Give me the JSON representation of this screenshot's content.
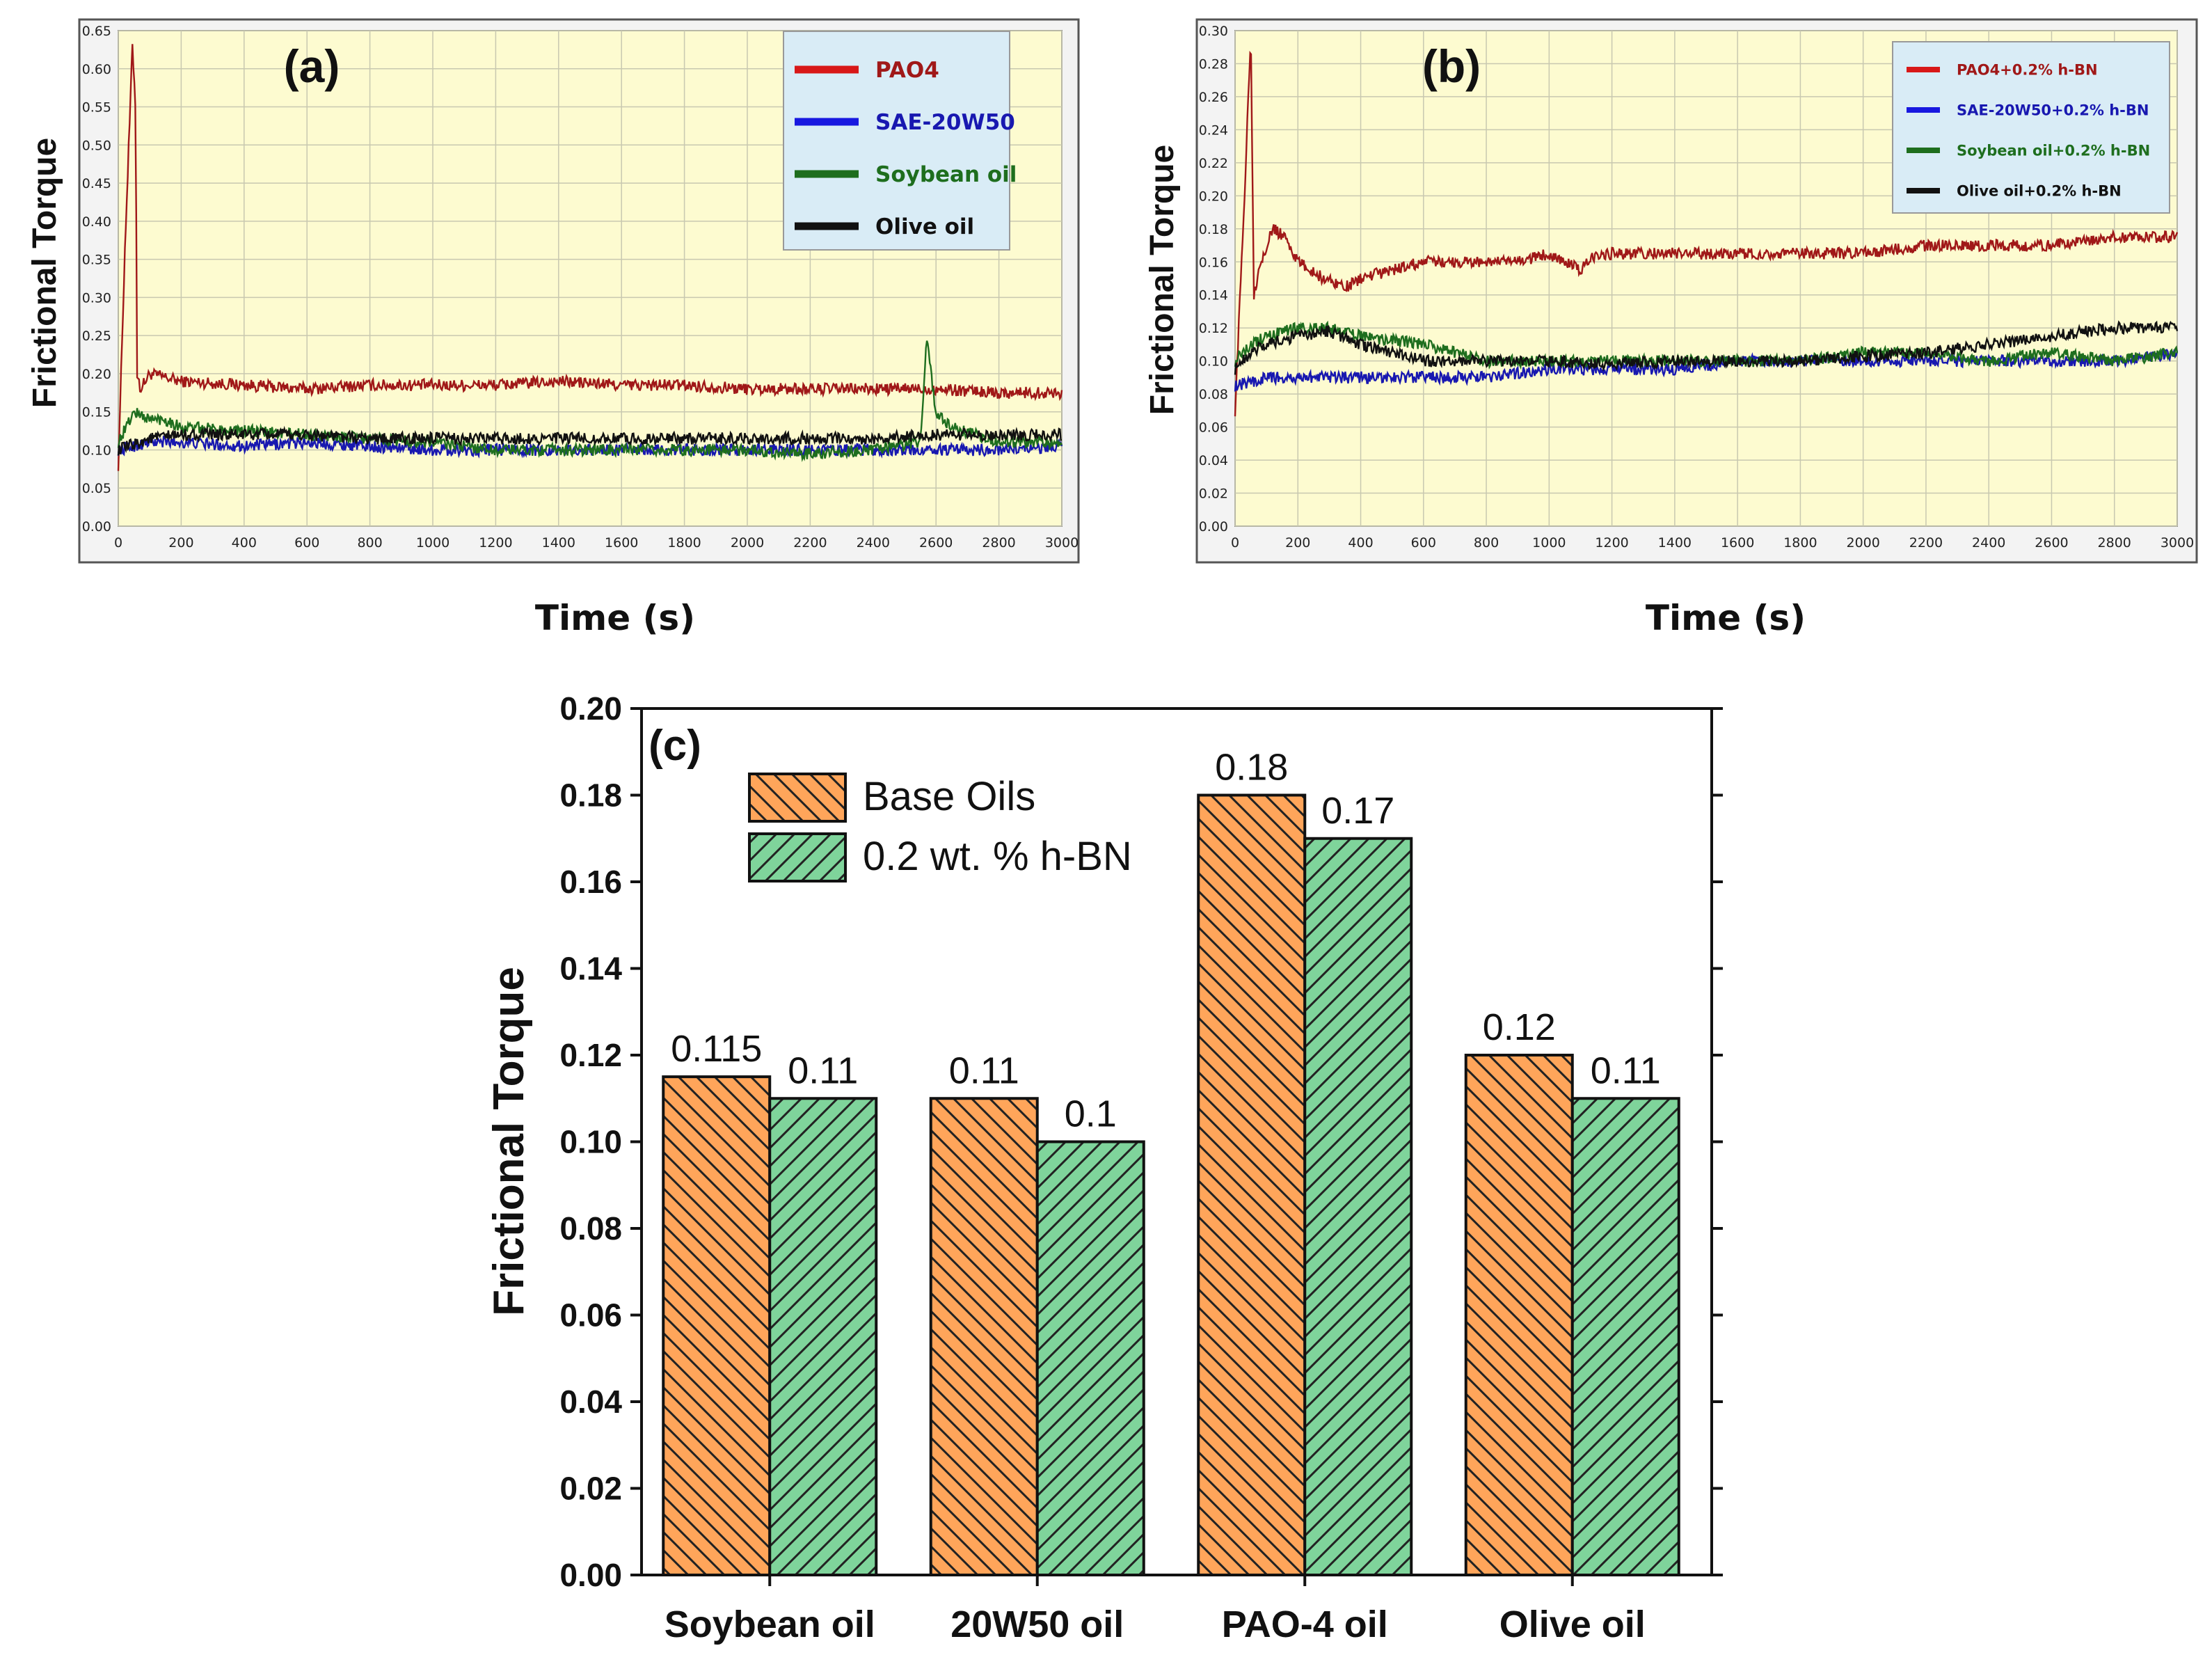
{
  "colors": {
    "plot_bg": "#fdfbd0",
    "legend_bg": "#d9ecf6",
    "grid": "#c8c8b0",
    "red": "#a01818",
    "blue": "#1818b0",
    "green": "#1e6e1e",
    "black": "#111111",
    "orange": "#ffa55a",
    "greenbar": "#7fd49b"
  },
  "chart_data": [
    {
      "panel": "(a)",
      "type": "line",
      "xlabel": "Time (s)",
      "ylabel": "Frictional Torque",
      "xlim": [
        0,
        3000
      ],
      "ylim": [
        0,
        0.65
      ],
      "xticks": [
        "0",
        "200",
        "400",
        "600",
        "800",
        "1000",
        "1200",
        "1400",
        "1600",
        "1800",
        "2000",
        "2200",
        "2400",
        "2600",
        "2800",
        "3000"
      ],
      "yticks": [
        "0.00",
        "0.05",
        "0.10",
        "0.15",
        "0.20",
        "0.25",
        "0.30",
        "0.35",
        "0.40",
        "0.45",
        "0.50",
        "0.55",
        "0.60",
        "0.65"
      ],
      "legend_loc": "top-right",
      "series": [
        {
          "name": "PAO4",
          "color": "red",
          "x": [
            0,
            20,
            45,
            55,
            60,
            70,
            100,
            200,
            400,
            600,
            800,
            1000,
            1200,
            1400,
            1600,
            1800,
            2000,
            2200,
            2400,
            2600,
            2800,
            3000
          ],
          "y": [
            0.08,
            0.35,
            0.63,
            0.55,
            0.2,
            0.18,
            0.2,
            0.19,
            0.185,
            0.18,
            0.185,
            0.185,
            0.185,
            0.19,
            0.185,
            0.185,
            0.18,
            0.18,
            0.18,
            0.18,
            0.175,
            0.175
          ]
        },
        {
          "name": "SAE-20W50",
          "color": "blue",
          "x": [
            0,
            100,
            200,
            400,
            600,
            800,
            1000,
            1200,
            1400,
            1600,
            1800,
            2000,
            2200,
            2400,
            2600,
            2800,
            3000
          ],
          "y": [
            0.1,
            0.11,
            0.11,
            0.105,
            0.11,
            0.105,
            0.1,
            0.1,
            0.1,
            0.1,
            0.1,
            0.1,
            0.1,
            0.1,
            0.1,
            0.1,
            0.105
          ]
        },
        {
          "name": "Soybean oil",
          "color": "green",
          "x": [
            0,
            50,
            100,
            150,
            200,
            400,
            600,
            800,
            1000,
            1200,
            1400,
            1600,
            1800,
            2000,
            2200,
            2400,
            2550,
            2570,
            2600,
            2650,
            2800,
            3000
          ],
          "y": [
            0.11,
            0.15,
            0.14,
            0.14,
            0.13,
            0.125,
            0.12,
            0.115,
            0.11,
            0.1,
            0.1,
            0.1,
            0.1,
            0.1,
            0.095,
            0.1,
            0.11,
            0.245,
            0.15,
            0.13,
            0.11,
            0.11
          ]
        },
        {
          "name": "Olive oil",
          "color": "black",
          "x": [
            0,
            100,
            200,
            400,
            600,
            800,
            1000,
            1200,
            1400,
            1600,
            1800,
            2000,
            2200,
            2400,
            2600,
            2800,
            3000
          ],
          "y": [
            0.1,
            0.115,
            0.12,
            0.12,
            0.12,
            0.115,
            0.115,
            0.115,
            0.115,
            0.115,
            0.115,
            0.115,
            0.115,
            0.115,
            0.12,
            0.12,
            0.12
          ]
        }
      ]
    },
    {
      "panel": "(b)",
      "type": "line",
      "xlabel": "Time (s)",
      "ylabel": "Frictional Torque",
      "xlim": [
        0,
        3000
      ],
      "ylim": [
        0,
        0.3
      ],
      "xticks": [
        "0",
        "200",
        "400",
        "600",
        "800",
        "1000",
        "1200",
        "1400",
        "1600",
        "1800",
        "2000",
        "2200",
        "2400",
        "2600",
        "2800",
        "3000"
      ],
      "yticks": [
        "0.00",
        "0.02",
        "0.04",
        "0.06",
        "0.08",
        "0.10",
        "0.12",
        "0.14",
        "0.16",
        "0.18",
        "0.20",
        "0.22",
        "0.24",
        "0.26",
        "0.28",
        "0.30"
      ],
      "legend_loc": "top-right",
      "series": [
        {
          "name": "PAO4+0.2% h-BN",
          "color": "red",
          "x": [
            0,
            30,
            50,
            60,
            80,
            120,
            160,
            200,
            280,
            360,
            400,
            600,
            800,
            900,
            1000,
            1050,
            1100,
            1150,
            1200,
            1400,
            1600,
            1800,
            2000,
            2200,
            2400,
            2600,
            2800,
            3000
          ],
          "y": [
            0.07,
            0.2,
            0.3,
            0.14,
            0.16,
            0.18,
            0.175,
            0.16,
            0.15,
            0.145,
            0.15,
            0.16,
            0.16,
            0.16,
            0.165,
            0.16,
            0.155,
            0.165,
            0.165,
            0.165,
            0.165,
            0.165,
            0.165,
            0.17,
            0.17,
            0.17,
            0.175,
            0.175
          ]
        },
        {
          "name": "SAE-20W50+0.2% h-BN",
          "color": "blue",
          "x": [
            0,
            100,
            200,
            400,
            600,
            800,
            1000,
            1200,
            1400,
            1600,
            1800,
            2000,
            2200,
            2400,
            2600,
            2800,
            3000
          ],
          "y": [
            0.085,
            0.09,
            0.09,
            0.09,
            0.09,
            0.09,
            0.095,
            0.095,
            0.095,
            0.1,
            0.1,
            0.1,
            0.1,
            0.1,
            0.1,
            0.1,
            0.105
          ]
        },
        {
          "name": "Soybean oil+0.2% h-BN",
          "color": "green",
          "x": [
            0,
            50,
            100,
            200,
            300,
            400,
            600,
            800,
            1000,
            1200,
            1400,
            1600,
            1800,
            2000,
            2200,
            2400,
            2600,
            2800,
            3000
          ],
          "y": [
            0.1,
            0.11,
            0.115,
            0.12,
            0.12,
            0.115,
            0.11,
            0.1,
            0.1,
            0.1,
            0.1,
            0.1,
            0.1,
            0.105,
            0.105,
            0.1,
            0.105,
            0.1,
            0.105
          ]
        },
        {
          "name": "Olive oil+0.2% h-BN",
          "color": "black",
          "x": [
            0,
            50,
            100,
            200,
            300,
            400,
            600,
            800,
            1000,
            1200,
            1400,
            1600,
            1800,
            2000,
            2200,
            2400,
            2600,
            2800,
            3000
          ],
          "y": [
            0.095,
            0.105,
            0.11,
            0.115,
            0.118,
            0.11,
            0.1,
            0.1,
            0.1,
            0.098,
            0.1,
            0.1,
            0.1,
            0.103,
            0.105,
            0.11,
            0.115,
            0.12,
            0.12
          ]
        }
      ]
    },
    {
      "panel": "(c)",
      "type": "bar",
      "xlabel": "",
      "ylabel": "Frictional Torque",
      "ylim": [
        0,
        0.2
      ],
      "yticks": [
        "0.00",
        "0.02",
        "0.04",
        "0.06",
        "0.08",
        "0.10",
        "0.12",
        "0.14",
        "0.16",
        "0.18",
        "0.20"
      ],
      "categories": [
        "Soybean oil",
        "20W50 oil",
        "PAO-4 oil",
        "Olive oil"
      ],
      "legend_loc": "top-left",
      "series": [
        {
          "name": "Base Oils",
          "values": [
            0.115,
            0.11,
            0.18,
            0.12
          ],
          "labels": [
            "0.115",
            "0.11",
            "0.18",
            "0.12"
          ]
        },
        {
          "name": "0.2 wt. % h-BN",
          "values": [
            0.11,
            0.1,
            0.17,
            0.11
          ],
          "labels": [
            "0.11",
            "0.1",
            "0.17",
            "0.11"
          ]
        }
      ]
    }
  ]
}
